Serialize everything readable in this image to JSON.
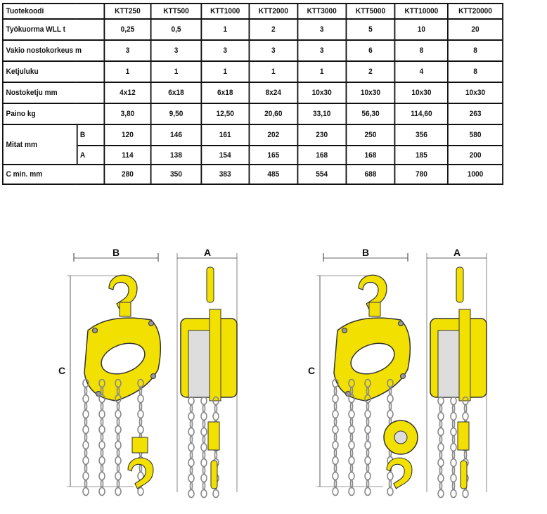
{
  "table": {
    "header_label": "Tuotekoodi",
    "models": [
      "KTT250",
      "KTT500",
      "KTT1000",
      "KTT2000",
      "KTT3000",
      "KTT5000",
      "KTT10000",
      "KTT20000"
    ],
    "rows": [
      {
        "label": "Työkuorma WLL t",
        "values": [
          "0,25",
          "0,5",
          "1",
          "2",
          "3",
          "5",
          "10",
          "20"
        ]
      },
      {
        "label": "Vakio nostokorkeus m",
        "values": [
          "3",
          "3",
          "3",
          "3",
          "3",
          "6",
          "8",
          "8"
        ]
      },
      {
        "label": "Ketjuluku",
        "values": [
          "1",
          "1",
          "1",
          "1",
          "1",
          "2",
          "4",
          "8"
        ]
      },
      {
        "label": "Nostoketju mm",
        "values": [
          "4x12",
          "6x18",
          "6x18",
          "8x24",
          "10x30",
          "10x30",
          "10x30",
          "10x30"
        ]
      },
      {
        "label": "Paino kg",
        "values": [
          "3,80",
          "9,50",
          "12,50",
          "20,60",
          "33,10",
          "56,30",
          "114,60",
          "263"
        ]
      }
    ],
    "mitat": {
      "label": "Mitat   mm",
      "B": {
        "label": "B",
        "values": [
          "120",
          "146",
          "161",
          "202",
          "230",
          "250",
          "356",
          "580"
        ]
      },
      "A": {
        "label": "A",
        "values": [
          "114",
          "138",
          "154",
          "165",
          "168",
          "168",
          "185",
          "200"
        ]
      }
    },
    "cmin": {
      "label": "C min. mm",
      "values": [
        "280",
        "350",
        "383",
        "485",
        "554",
        "688",
        "780",
        "1000"
      ]
    }
  },
  "diagrams": {
    "left": {
      "b_label": "B",
      "a_label": "A",
      "c_label": "C"
    },
    "right": {
      "b_label": "B",
      "a_label": "A",
      "c_label": "C"
    },
    "colors": {
      "body": "#f2e000",
      "outline": "#333333",
      "chain": "#888888"
    }
  }
}
